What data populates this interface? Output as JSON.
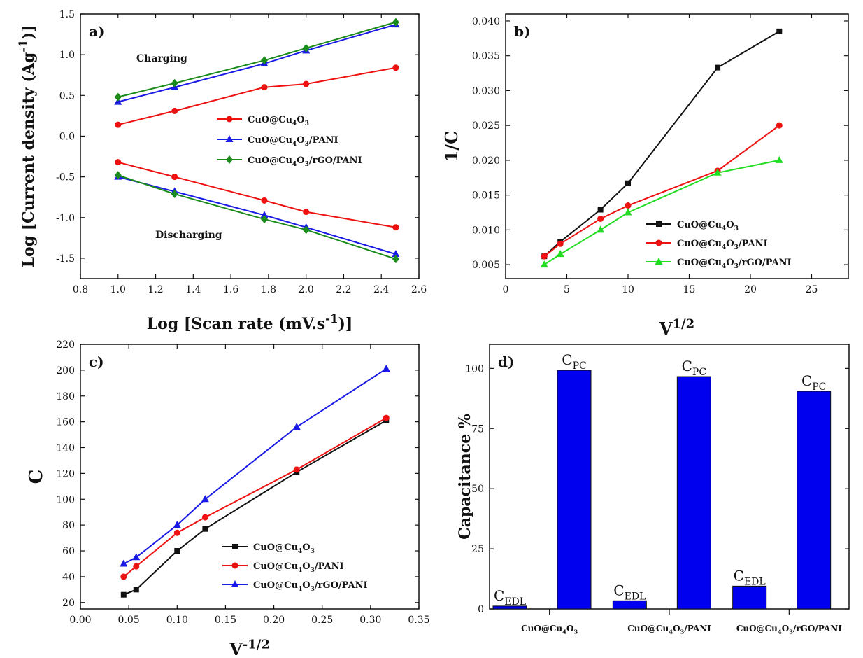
{
  "chart_data": [
    {
      "panel": "a)",
      "type": "line",
      "xlabel": "Log [Scan rate (mV.s-1)]",
      "ylabel": "Log [Current density (Ag-1)]",
      "xlim": [
        0.8,
        2.6
      ],
      "ylim": [
        -1.75,
        1.5
      ],
      "xticks": [
        0.8,
        1.0,
        1.2,
        1.4,
        1.6,
        1.8,
        2.0,
        2.2,
        2.4,
        2.6
      ],
      "yticks": [
        -1.5,
        -1.0,
        -0.5,
        0.0,
        0.5,
        1.0,
        1.5
      ],
      "x": [
        1.0,
        1.301,
        1.778,
        2.0,
        2.477
      ],
      "series": [
        {
          "name": "CuO@Cu4O3",
          "color": "#ee1111",
          "marker": "circle",
          "charging": [
            0.14,
            0.31,
            0.6,
            0.64,
            0.84
          ],
          "discharging": [
            -0.32,
            -0.5,
            -0.79,
            -0.93,
            -1.12
          ]
        },
        {
          "name": "CuO@Cu4O3/PANI",
          "color": "#1a1ae6",
          "marker": "triangle",
          "charging": [
            0.42,
            0.6,
            0.89,
            1.05,
            1.37
          ],
          "discharging": [
            -0.5,
            -0.68,
            -0.97,
            -1.12,
            -1.45
          ]
        },
        {
          "name": "CuO@Cu4O3/rGO/PANI",
          "color": "#1a8a1a",
          "marker": "diamond",
          "charging": [
            0.48,
            0.65,
            0.93,
            1.08,
            1.4
          ],
          "discharging": [
            -0.48,
            -0.71,
            -1.02,
            -1.15,
            -1.51
          ]
        }
      ],
      "annotations": [
        "Charging",
        "Discharging"
      ],
      "legend_position": "center-right",
      "grid": false
    },
    {
      "panel": "b)",
      "type": "line",
      "xlabel": "V1/2",
      "ylabel": "1/C",
      "xlim": [
        0,
        28
      ],
      "ylim": [
        0.003,
        0.041
      ],
      "xticks": [
        0,
        5,
        10,
        15,
        20,
        25
      ],
      "yticks": [
        0.005,
        0.01,
        0.015,
        0.02,
        0.025,
        0.03,
        0.035,
        0.04
      ],
      "x": [
        3.16,
        4.47,
        7.75,
        10.0,
        17.32,
        22.36
      ],
      "series": [
        {
          "name": "CuO@Cu4O3",
          "color": "#111111",
          "marker": "square",
          "values": [
            0.0062,
            0.0083,
            0.0129,
            0.0167,
            0.0333,
            0.0385
          ]
        },
        {
          "name": "CuO@Cu4O3/PANI",
          "color": "#ee1111",
          "marker": "circle",
          "values": [
            0.0062,
            0.008,
            0.0116,
            0.0135,
            0.0185,
            0.025
          ]
        },
        {
          "name": "CuO@Cu4O3/rGO/PANI",
          "color": "#22dd22",
          "marker": "triangle",
          "values": [
            0.005,
            0.0065,
            0.01,
            0.0125,
            0.0182,
            0.02
          ]
        }
      ],
      "legend_position": "bottom-right",
      "grid": false
    },
    {
      "panel": "c)",
      "type": "line",
      "xlabel": "V-1/2",
      "ylabel": "C",
      "xlim": [
        0.0,
        0.35
      ],
      "ylim": [
        15,
        220
      ],
      "xticks": [
        0.0,
        0.05,
        0.1,
        0.15,
        0.2,
        0.25,
        0.3,
        0.35
      ],
      "yticks": [
        20,
        40,
        60,
        80,
        100,
        120,
        140,
        160,
        180,
        200,
        220
      ],
      "x": [
        0.0447,
        0.0577,
        0.1,
        0.129,
        0.2236,
        0.3162
      ],
      "series": [
        {
          "name": "CuO@Cu4O3",
          "color": "#111111",
          "marker": "square",
          "values": [
            26,
            30,
            60,
            77,
            121,
            161
          ]
        },
        {
          "name": "CuO@Cu4O3/PANI",
          "color": "#ee1111",
          "marker": "circle",
          "values": [
            40,
            48,
            74,
            86,
            123,
            163
          ]
        },
        {
          "name": "CuO@Cu4O3/rGO/PANI",
          "color": "#1a1ae6",
          "marker": "triangle",
          "values": [
            50,
            55,
            80,
            100,
            156,
            201
          ]
        }
      ],
      "legend_position": "bottom-right",
      "grid": false
    },
    {
      "panel": "d)",
      "type": "bar",
      "ylabel": "Capacitance %",
      "ylim": [
        0,
        110
      ],
      "yticks": [
        0,
        25,
        50,
        75,
        100
      ],
      "categories": [
        "CuO@Cu4O3",
        "CuO@Cu4O3/PANI",
        "CuO@Cu4O3/rGO/PANI"
      ],
      "series": [
        {
          "name": "CEDL",
          "values": [
            1.2,
            3.4,
            9.5
          ]
        },
        {
          "name": "CPC",
          "values": [
            99.2,
            96.6,
            90.5
          ]
        }
      ],
      "bar_color": "#0000ee",
      "grid": false
    }
  ]
}
